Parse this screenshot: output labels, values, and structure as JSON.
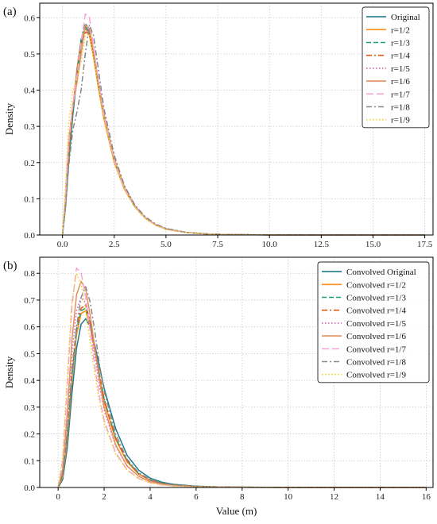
{
  "chart_data": [
    {
      "panel_label": "(a)",
      "type": "line",
      "xlabel": "",
      "ylabel": "Density",
      "xlim": [
        -1.1,
        17.9
      ],
      "ylim": [
        0,
        0.64
      ],
      "xticks": [
        0.0,
        2.5,
        5.0,
        7.5,
        10.0,
        12.5,
        15.0,
        17.5
      ],
      "xtick_labels": [
        "0.0",
        "2.5",
        "5.0",
        "7.5",
        "10.0",
        "12.5",
        "15.0",
        "17.5"
      ],
      "yticks": [
        0.0,
        0.1,
        0.2,
        0.3,
        0.4,
        0.5,
        0.6
      ],
      "ytick_labels": [
        "0.0",
        "0.1",
        "0.2",
        "0.3",
        "0.4",
        "0.5",
        "0.6"
      ],
      "grid": true,
      "legend_position": "top-right",
      "series": [
        {
          "name": "Original",
          "color": "#1f7a8c",
          "dash": "solid",
          "x": [
            0,
            0.15,
            0.3,
            0.5,
            0.7,
            0.9,
            1.1,
            1.3,
            1.5,
            1.75,
            2,
            2.5,
            3,
            3.5,
            4,
            4.5,
            5,
            6,
            7,
            8,
            10,
            12,
            14,
            17.5
          ],
          "y": [
            0,
            0.08,
            0.2,
            0.33,
            0.44,
            0.53,
            0.575,
            0.56,
            0.5,
            0.41,
            0.33,
            0.21,
            0.13,
            0.08,
            0.048,
            0.028,
            0.017,
            0.007,
            0.003,
            0.001,
            0.0004,
            0.0001,
            5e-05,
            0
          ]
        },
        {
          "name": "r=1/2",
          "color": "#ff8c1a",
          "dash": "solid",
          "x": [
            0,
            0.15,
            0.3,
            0.5,
            0.7,
            0.9,
            1.1,
            1.3,
            1.5,
            1.75,
            2,
            2.5,
            3,
            3.5,
            4,
            4.5,
            5,
            6,
            7,
            8,
            10,
            12,
            14,
            17.5
          ],
          "y": [
            0,
            0.09,
            0.22,
            0.35,
            0.46,
            0.54,
            0.57,
            0.55,
            0.49,
            0.4,
            0.32,
            0.2,
            0.125,
            0.077,
            0.046,
            0.027,
            0.016,
            0.007,
            0.003,
            0.001,
            0.0004,
            0.0001,
            5e-05,
            0
          ]
        },
        {
          "name": "r=1/3",
          "color": "#1a9e77",
          "dash": "dashed",
          "x": [
            0,
            0.15,
            0.3,
            0.5,
            0.7,
            0.9,
            1.1,
            1.3,
            1.5,
            1.75,
            2,
            2.5,
            3,
            3.5,
            4,
            4.5,
            5,
            6,
            7,
            8,
            10,
            12,
            14,
            17.5
          ],
          "y": [
            0,
            0.09,
            0.21,
            0.34,
            0.45,
            0.54,
            0.585,
            0.565,
            0.5,
            0.41,
            0.33,
            0.205,
            0.128,
            0.078,
            0.047,
            0.028,
            0.016,
            0.007,
            0.003,
            0.001,
            0.0004,
            0.0001,
            5e-05,
            0
          ]
        },
        {
          "name": "r=1/4",
          "color": "#e05a10",
          "dash": "dashdot",
          "x": [
            0,
            0.15,
            0.3,
            0.5,
            0.7,
            0.9,
            1.1,
            1.3,
            1.5,
            1.75,
            2,
            2.5,
            3,
            3.5,
            4,
            4.5,
            5,
            6,
            7,
            8,
            10,
            12,
            14,
            17.5
          ],
          "y": [
            0,
            0.1,
            0.23,
            0.35,
            0.44,
            0.52,
            0.56,
            0.555,
            0.5,
            0.42,
            0.34,
            0.215,
            0.135,
            0.082,
            0.05,
            0.03,
            0.018,
            0.007,
            0.003,
            0.001,
            0.0004,
            0.0001,
            5e-05,
            0
          ]
        },
        {
          "name": "r=1/5",
          "color": "#d85fb0",
          "dash": "dotted",
          "x": [
            0,
            0.15,
            0.3,
            0.5,
            0.7,
            0.9,
            1.1,
            1.3,
            1.5,
            1.75,
            2,
            2.5,
            3,
            3.5,
            4,
            4.5,
            5,
            6,
            7,
            8,
            10,
            12,
            14,
            17.5
          ],
          "y": [
            0,
            0.1,
            0.24,
            0.36,
            0.44,
            0.51,
            0.57,
            0.56,
            0.5,
            0.41,
            0.33,
            0.21,
            0.13,
            0.08,
            0.048,
            0.028,
            0.016,
            0.007,
            0.003,
            0.001,
            0.0004,
            0.0001,
            5e-05,
            0
          ]
        },
        {
          "name": "r=1/6",
          "color": "#e09060",
          "dash": "solid",
          "x": [
            0,
            0.15,
            0.3,
            0.5,
            0.7,
            0.9,
            1.1,
            1.3,
            1.5,
            1.75,
            2,
            2.5,
            3,
            3.5,
            4,
            4.5,
            5,
            6,
            7,
            8,
            10,
            12,
            14,
            17.5
          ],
          "y": [
            0,
            0.11,
            0.26,
            0.36,
            0.42,
            0.5,
            0.58,
            0.57,
            0.51,
            0.42,
            0.335,
            0.21,
            0.13,
            0.08,
            0.048,
            0.028,
            0.016,
            0.007,
            0.003,
            0.001,
            0.0004,
            0.0001,
            5e-05,
            0
          ]
        },
        {
          "name": "r=1/7",
          "color": "#f4a6d8",
          "dash": "longdash",
          "x": [
            0,
            0.15,
            0.3,
            0.5,
            0.7,
            0.9,
            1.1,
            1.3,
            1.5,
            1.75,
            2,
            2.5,
            3,
            3.5,
            4,
            4.5,
            5,
            6,
            7,
            8,
            10,
            12,
            14,
            17.5
          ],
          "y": [
            0,
            0.11,
            0.25,
            0.36,
            0.44,
            0.53,
            0.61,
            0.6,
            0.52,
            0.42,
            0.33,
            0.205,
            0.127,
            0.078,
            0.047,
            0.028,
            0.016,
            0.007,
            0.003,
            0.001,
            0.0004,
            0.0001,
            5e-05,
            0
          ]
        },
        {
          "name": "r=1/8",
          "color": "#888888",
          "dash": "dashdot",
          "x": [
            0,
            0.15,
            0.3,
            0.5,
            0.7,
            0.9,
            1.1,
            1.3,
            1.5,
            1.75,
            2,
            2.5,
            3,
            3.5,
            4,
            4.5,
            5,
            6,
            7,
            8,
            10,
            12,
            14,
            17.5
          ],
          "y": [
            0,
            0.08,
            0.19,
            0.29,
            0.34,
            0.4,
            0.5,
            0.58,
            0.55,
            0.45,
            0.35,
            0.22,
            0.135,
            0.082,
            0.05,
            0.03,
            0.018,
            0.007,
            0.003,
            0.001,
            0.0004,
            0.0001,
            5e-05,
            0
          ]
        },
        {
          "name": "r=1/9",
          "color": "#f2d21b",
          "dash": "dotted",
          "x": [
            0,
            0.15,
            0.3,
            0.5,
            0.7,
            0.9,
            1.1,
            1.3,
            1.5,
            1.75,
            2,
            2.5,
            3,
            3.5,
            4,
            4.5,
            5,
            6,
            7,
            8,
            10,
            12,
            14,
            17.5
          ],
          "y": [
            0,
            0.14,
            0.31,
            0.4,
            0.43,
            0.48,
            0.55,
            0.555,
            0.49,
            0.4,
            0.32,
            0.2,
            0.124,
            0.076,
            0.046,
            0.027,
            0.016,
            0.007,
            0.003,
            0.001,
            0.0004,
            0.0001,
            5e-05,
            0
          ]
        }
      ]
    },
    {
      "panel_label": "(b)",
      "type": "line",
      "xlabel": "Value (m)",
      "ylabel": "Density",
      "xlim": [
        -0.8,
        16.3
      ],
      "ylim": [
        0,
        0.86
      ],
      "xticks": [
        0,
        2,
        4,
        6,
        8,
        10,
        12,
        14,
        16
      ],
      "xtick_labels": [
        "0",
        "2",
        "4",
        "6",
        "8",
        "10",
        "12",
        "14",
        "16"
      ],
      "yticks": [
        0.0,
        0.1,
        0.2,
        0.3,
        0.4,
        0.5,
        0.6,
        0.7,
        0.8
      ],
      "ytick_labels": [
        "0.0",
        "0.1",
        "0.2",
        "0.3",
        "0.4",
        "0.5",
        "0.6",
        "0.7",
        "0.8"
      ],
      "grid": true,
      "legend_position": "top-right",
      "series": [
        {
          "name": "Convolved Original",
          "color": "#1f7a8c",
          "dash": "solid",
          "x": [
            0,
            0.2,
            0.4,
            0.6,
            0.8,
            1.0,
            1.2,
            1.4,
            1.6,
            1.8,
            2.0,
            2.5,
            3.0,
            3.5,
            4.0,
            4.5,
            5.0,
            6.0,
            7.0,
            8.0,
            10.0,
            12.0,
            14.0,
            16.0
          ],
          "y": [
            0,
            0.03,
            0.15,
            0.35,
            0.52,
            0.61,
            0.63,
            0.6,
            0.53,
            0.45,
            0.37,
            0.22,
            0.12,
            0.065,
            0.035,
            0.02,
            0.012,
            0.005,
            0.002,
            0.001,
            0.0004,
            0.0001,
            5e-05,
            0
          ]
        },
        {
          "name": "Convolved r=1/2",
          "color": "#ff8c1a",
          "dash": "solid",
          "x": [
            0,
            0.2,
            0.4,
            0.6,
            0.8,
            1.0,
            1.2,
            1.4,
            1.6,
            1.8,
            2.0,
            2.5,
            3.0,
            3.5,
            4.0,
            4.5,
            5.0,
            6.0,
            7.0,
            8.0,
            10.0,
            12.0,
            14.0,
            16.0
          ],
          "y": [
            0,
            0.04,
            0.18,
            0.4,
            0.57,
            0.65,
            0.66,
            0.6,
            0.51,
            0.41,
            0.32,
            0.18,
            0.095,
            0.05,
            0.027,
            0.015,
            0.009,
            0.004,
            0.002,
            0.001,
            0.0004,
            0.0001,
            5e-05,
            0
          ]
        },
        {
          "name": "Convolved r=1/3",
          "color": "#1a9e77",
          "dash": "dashed",
          "x": [
            0,
            0.2,
            0.4,
            0.6,
            0.8,
            1.0,
            1.2,
            1.4,
            1.6,
            1.8,
            2.0,
            2.5,
            3.0,
            3.5,
            4.0,
            4.5,
            5.0,
            6.0,
            7.0,
            8.0,
            10.0,
            12.0,
            14.0,
            16.0
          ],
          "y": [
            0,
            0.05,
            0.2,
            0.42,
            0.59,
            0.66,
            0.67,
            0.61,
            0.52,
            0.42,
            0.33,
            0.185,
            0.1,
            0.052,
            0.028,
            0.016,
            0.009,
            0.004,
            0.002,
            0.001,
            0.0004,
            0.0001,
            5e-05,
            0
          ]
        },
        {
          "name": "Convolved r=1/4",
          "color": "#e05a10",
          "dash": "dashdot",
          "x": [
            0,
            0.2,
            0.4,
            0.6,
            0.8,
            1.0,
            1.2,
            1.4,
            1.6,
            1.8,
            2.0,
            2.5,
            3.0,
            3.5,
            4.0,
            4.5,
            5.0,
            6.0,
            7.0,
            8.0,
            10.0,
            12.0,
            14.0,
            16.0
          ],
          "y": [
            0,
            0.05,
            0.21,
            0.44,
            0.6,
            0.67,
            0.68,
            0.62,
            0.52,
            0.42,
            0.33,
            0.185,
            0.1,
            0.052,
            0.028,
            0.016,
            0.009,
            0.004,
            0.002,
            0.001,
            0.0004,
            0.0001,
            5e-05,
            0
          ]
        },
        {
          "name": "Convolved r=1/5",
          "color": "#d85fb0",
          "dash": "dotted",
          "x": [
            0,
            0.2,
            0.4,
            0.6,
            0.8,
            1.0,
            1.2,
            1.4,
            1.6,
            1.8,
            2.0,
            2.5,
            3.0,
            3.5,
            4.0,
            4.5,
            5.0,
            6.0,
            7.0,
            8.0,
            10.0,
            12.0,
            14.0,
            16.0
          ],
          "y": [
            0,
            0.06,
            0.25,
            0.5,
            0.66,
            0.71,
            0.69,
            0.6,
            0.49,
            0.38,
            0.29,
            0.155,
            0.08,
            0.042,
            0.022,
            0.012,
            0.007,
            0.003,
            0.0015,
            0.0007,
            0.0003,
            0.0001,
            5e-05,
            0
          ]
        },
        {
          "name": "Convolved r=1/6",
          "color": "#e09060",
          "dash": "solid",
          "x": [
            0,
            0.2,
            0.4,
            0.6,
            0.8,
            1.0,
            1.2,
            1.4,
            1.6,
            1.8,
            2.0,
            2.5,
            3.0,
            3.5,
            4.0,
            4.5,
            5.0,
            6.0,
            7.0,
            8.0,
            10.0,
            12.0,
            14.0,
            16.0
          ],
          "y": [
            0,
            0.07,
            0.28,
            0.55,
            0.72,
            0.77,
            0.74,
            0.64,
            0.52,
            0.4,
            0.3,
            0.16,
            0.08,
            0.042,
            0.022,
            0.012,
            0.007,
            0.003,
            0.0015,
            0.0007,
            0.0003,
            0.0001,
            5e-05,
            0
          ]
        },
        {
          "name": "Convolved r=1/7",
          "color": "#f4a6d8",
          "dash": "longdash",
          "x": [
            0,
            0.2,
            0.4,
            0.6,
            0.8,
            1.0,
            1.2,
            1.4,
            1.6,
            1.8,
            2.0,
            2.5,
            3.0,
            3.5,
            4.0,
            4.5,
            5.0,
            6.0,
            7.0,
            8.0,
            10.0,
            12.0,
            14.0,
            16.0
          ],
          "y": [
            0,
            0.1,
            0.38,
            0.68,
            0.82,
            0.8,
            0.71,
            0.58,
            0.45,
            0.34,
            0.25,
            0.13,
            0.066,
            0.034,
            0.018,
            0.01,
            0.006,
            0.0025,
            0.0012,
            0.0006,
            0.0003,
            0.0001,
            5e-05,
            0
          ]
        },
        {
          "name": "Convolved r=1/8",
          "color": "#888888",
          "dash": "dashdot",
          "x": [
            0,
            0.2,
            0.4,
            0.6,
            0.8,
            1.0,
            1.2,
            1.4,
            1.6,
            1.8,
            2.0,
            2.5,
            3.0,
            3.5,
            4.0,
            4.5,
            5.0,
            6.0,
            7.0,
            8.0,
            10.0,
            12.0,
            14.0,
            16.0
          ],
          "y": [
            0,
            0.05,
            0.2,
            0.42,
            0.6,
            0.71,
            0.75,
            0.69,
            0.58,
            0.46,
            0.36,
            0.2,
            0.105,
            0.055,
            0.03,
            0.017,
            0.01,
            0.004,
            0.002,
            0.001,
            0.0004,
            0.0001,
            5e-05,
            0
          ]
        },
        {
          "name": "Convolved r=1/9",
          "color": "#f2d21b",
          "dash": "dotted",
          "x": [
            0,
            0.2,
            0.4,
            0.6,
            0.8,
            1.0,
            1.2,
            1.4,
            1.6,
            1.8,
            2.0,
            2.5,
            3.0,
            3.5,
            4.0,
            4.5,
            5.0,
            6.0,
            7.0,
            8.0,
            10.0,
            12.0,
            14.0,
            16.0
          ],
          "y": [
            0,
            0.12,
            0.42,
            0.7,
            0.8,
            0.76,
            0.66,
            0.54,
            0.42,
            0.32,
            0.24,
            0.125,
            0.064,
            0.033,
            0.017,
            0.01,
            0.006,
            0.0025,
            0.0012,
            0.0006,
            0.0003,
            0.0001,
            5e-05,
            0
          ]
        }
      ]
    }
  ]
}
